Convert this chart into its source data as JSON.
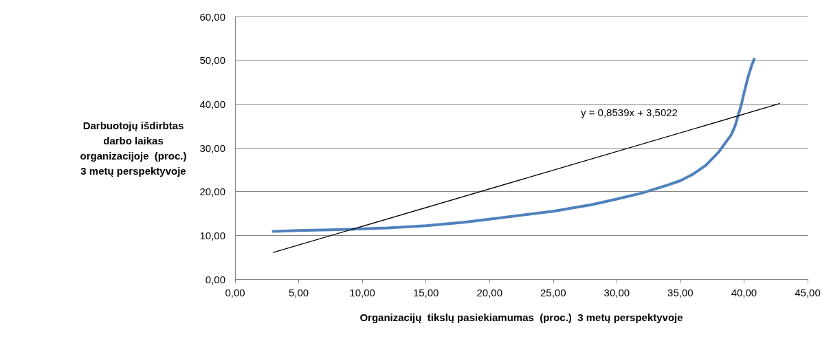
{
  "chart_data": {
    "type": "line",
    "xlabel": "Organizacijų  tikslų pasiekiamumas  (proc.)  3 metų perspektyvoje",
    "ylabel": "Darbuotojų išdirbtas darbo laikas organizacijoje  (proc.) 3 metų perspektyvoje",
    "series": [
      {
        "color": "#4f81bd",
        "x": [
          3,
          5,
          8,
          10,
          12,
          15,
          18,
          20,
          23,
          25,
          28,
          30,
          32,
          34,
          35,
          36,
          37,
          38,
          38.5,
          39,
          39.3,
          39.6,
          39.8,
          40,
          40.3,
          40.6,
          40.8
        ],
        "values": [
          10.9,
          11.1,
          11.3,
          11.5,
          11.7,
          12.2,
          13,
          13.7,
          14.8,
          15.5,
          17,
          18.3,
          19.7,
          21.5,
          22.5,
          24,
          26,
          29,
          31,
          33,
          35,
          38,
          40,
          42.5,
          46,
          48.8,
          50.3
        ]
      },
      {
        "type": "line",
        "color": "#000000",
        "x": [
          3,
          42.8
        ],
        "values": [
          6.1,
          40.1
        ]
      }
    ],
    "annotations": [
      "y = 0,8539x + 3,5022"
    ],
    "xlim": [
      0,
      45
    ],
    "ylim": [
      0,
      60
    ],
    "xticks": [
      {
        "value": 0,
        "label": "0,00"
      },
      {
        "value": 5,
        "label": "5,00"
      },
      {
        "value": 10,
        "label": "10,00"
      },
      {
        "value": 15,
        "label": "15,00"
      },
      {
        "value": 20,
        "label": "20,00"
      },
      {
        "value": 25,
        "label": "25,00"
      },
      {
        "value": 30,
        "label": "30,00"
      },
      {
        "value": 35,
        "label": "35,00"
      },
      {
        "value": 40,
        "label": "40,00"
      },
      {
        "value": 45,
        "label": "45,00"
      }
    ],
    "yticks": [
      {
        "value": 0,
        "label": "0,00"
      },
      {
        "value": 10,
        "label": "10,00"
      },
      {
        "value": 20,
        "label": "20,00"
      },
      {
        "value": 30,
        "label": "30,00"
      },
      {
        "value": 40,
        "label": "40,00"
      },
      {
        "value": 50,
        "label": "50,00"
      },
      {
        "value": 60,
        "label": "60,00"
      }
    ],
    "grid": "y",
    "marker": "none"
  }
}
